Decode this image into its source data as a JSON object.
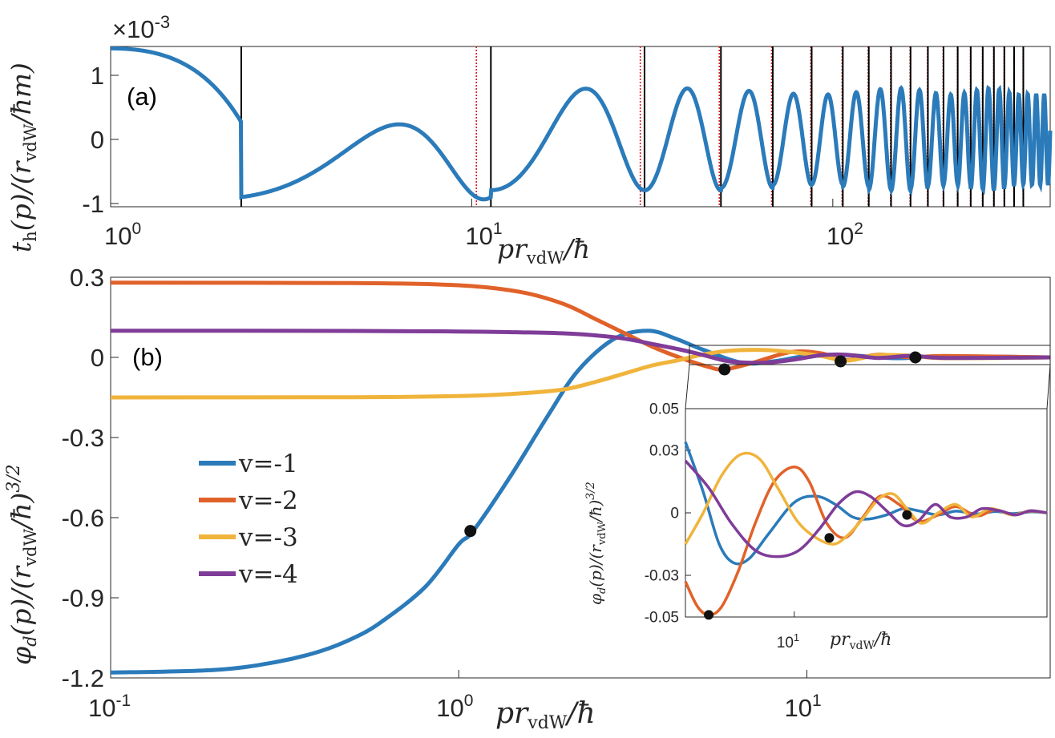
{
  "chart_data": [
    {
      "id": "panel_a",
      "type": "line",
      "panel_label": "(a)",
      "xlabel": "pr_vdW/ħ",
      "ylabel": "t_h(p)/(r_vdW/ħm)",
      "xscale": "log",
      "xlim": [
        1,
        400
      ],
      "ylim": [
        -1.05,
        1.45
      ],
      "y_multiplier": "×10^-3",
      "xticks": [
        {
          "value": 1,
          "label": "10",
          "exp": "0"
        },
        {
          "value": 10,
          "label": "10",
          "exp": "1"
        },
        {
          "value": 100,
          "label": "10",
          "exp": "2"
        }
      ],
      "yticks": [
        {
          "value": -1,
          "label": "-1"
        },
        {
          "value": 0,
          "label": "0"
        },
        {
          "value": 1,
          "label": "1"
        }
      ],
      "color": "#2b7bba",
      "series_formula": "damped oscillation: y = A(p)·cos(φ(p)); A=1.45 at p=1, mid-range amplitude ≈0.6–0.8",
      "black_lines_x": [
        2.3,
        11.3,
        30.1,
        49.0,
        68.2,
        87.4,
        106.6,
        125.8,
        145.0,
        164.2,
        183.4,
        202.6,
        221.8,
        241.0,
        260.2,
        279.4,
        298.6,
        317.8,
        337.0
      ],
      "red_dotted_lines_x": [
        10.3,
        29.3,
        48.5,
        67.7,
        86.9,
        106.1,
        125.3,
        144.5,
        163.7,
        182.9,
        202.1,
        221.3,
        240.5,
        259.7,
        278.9,
        298.1,
        317.3,
        336.5
      ]
    },
    {
      "id": "panel_b",
      "type": "line",
      "panel_label": "(b)",
      "xlabel": "pr_vdW/ħ",
      "ylabel": "φ_d(p)/(r_vdW/ħ)^3/2",
      "xscale": "log",
      "xlim": [
        0.1,
        50
      ],
      "ylim": [
        -1.2,
        0.3
      ],
      "xticks": [
        {
          "value": 0.1,
          "label": "10",
          "exp": "-1"
        },
        {
          "value": 1,
          "label": "10",
          "exp": "0"
        },
        {
          "value": 10,
          "label": "10",
          "exp": "1"
        }
      ],
      "yticks": [
        {
          "value": 0.3,
          "label": "0.3"
        },
        {
          "value": 0,
          "label": "0"
        },
        {
          "value": -0.3,
          "label": "-0.3"
        },
        {
          "value": -0.6,
          "label": "-0.6"
        },
        {
          "value": -0.9,
          "label": "-0.9"
        },
        {
          "value": -1.2,
          "label": "-1.2"
        }
      ],
      "legend_position": "center-left",
      "series": [
        {
          "name": "v=-1",
          "color": "#2b7bba",
          "y0": -1.18,
          "x": [
            0.1,
            0.2,
            0.3,
            0.4,
            0.5,
            0.6,
            0.8,
            1.0,
            1.1,
            1.4,
            1.8,
            2.2,
            2.8,
            3.5,
            4.2,
            5.0,
            6.5,
            8.0,
            10,
            13,
            18,
            25,
            50
          ],
          "values": [
            -1.18,
            -1.17,
            -1.14,
            -1.1,
            -1.05,
            -0.99,
            -0.86,
            -0.7,
            -0.65,
            -0.45,
            -0.22,
            -0.05,
            0.07,
            0.1,
            0.07,
            0.03,
            -0.02,
            -0.015,
            0.005,
            0.008,
            -0.003,
            0.004,
            0
          ]
        },
        {
          "name": "v=-2",
          "color": "#e0622a",
          "x": [
            0.1,
            0.5,
            1.0,
            1.5,
            2.0,
            2.5,
            3.0,
            3.6,
            4.3,
            5.2,
            5.8,
            7.0,
            9.0,
            11,
            13,
            16,
            20,
            25,
            50
          ],
          "values": [
            0.28,
            0.278,
            0.27,
            0.245,
            0.2,
            0.14,
            0.09,
            0.04,
            0.0,
            -0.035,
            -0.045,
            -0.02,
            0.02,
            0.015,
            -0.01,
            0.01,
            0.0,
            0.005,
            0
          ]
        },
        {
          "name": "v=-3",
          "color": "#f0b43c",
          "x": [
            0.1,
            0.5,
            1.0,
            1.5,
            2.0,
            2.5,
            3.0,
            3.6,
            4.3,
            5.0,
            6.0,
            7.5,
            9.0,
            11,
            13,
            16,
            20,
            25,
            50
          ],
          "values": [
            -0.15,
            -0.149,
            -0.145,
            -0.135,
            -0.12,
            -0.09,
            -0.06,
            -0.03,
            -0.01,
            0.01,
            0.025,
            0.028,
            0.02,
            0.005,
            -0.012,
            0.008,
            0.006,
            -0.003,
            0
          ]
        },
        {
          "name": "v=-4",
          "color": "#7f3c98",
          "x": [
            0.1,
            0.5,
            1.0,
            1.5,
            2.0,
            2.5,
            3.0,
            3.6,
            4.3,
            5.0,
            6.0,
            7.5,
            9.0,
            11,
            13,
            16,
            20,
            25,
            50
          ],
          "values": [
            0.1,
            0.099,
            0.097,
            0.094,
            0.09,
            0.082,
            0.07,
            0.05,
            0.03,
            0.01,
            -0.015,
            -0.02,
            -0.01,
            0.008,
            0.01,
            -0.002,
            0.006,
            -0.002,
            0
          ]
        }
      ],
      "markers": [
        {
          "x": 1.08,
          "y": -0.65
        },
        {
          "x": 5.8,
          "y": -0.045
        },
        {
          "x": 12.5,
          "y": -0.015
        },
        {
          "x": 20.5,
          "y": 0.0
        }
      ]
    },
    {
      "id": "panel_b_inset",
      "type": "line",
      "xlabel": "pr_vdW/ħ",
      "ylabel": "φ_d(p)/(r_vdW/ħ)^3/2",
      "xscale": "log",
      "xlim": [
        5,
        50
      ],
      "ylim": [
        -0.05,
        0.05
      ],
      "xticks": [
        {
          "value": 10,
          "label": "10",
          "exp": "1"
        }
      ],
      "yticks": [
        {
          "value": 0.05,
          "label": "0.05"
        },
        {
          "value": 0.03,
          "label": "0.03"
        },
        {
          "value": 0,
          "label": "0"
        },
        {
          "value": -0.03,
          "label": "-0.03"
        },
        {
          "value": -0.05,
          "label": "-0.05"
        }
      ],
      "series": [
        {
          "name": "v=-1",
          "color": "#2b7bba",
          "x": [
            5.0,
            5.6,
            6.2,
            6.8,
            7.5,
            8.5,
            10,
            11.5,
            13,
            14.5,
            16,
            18,
            20,
            22,
            25,
            28,
            32,
            36,
            40,
            45,
            50
          ],
          "values": [
            0.034,
            0.01,
            -0.015,
            -0.024,
            -0.022,
            -0.01,
            0.005,
            0.008,
            0.004,
            -0.002,
            -0.003,
            -0.001,
            0.002,
            0.001,
            -0.001,
            0.0008,
            -0.0005,
            0.0007,
            -0.0004,
            0.0005,
            0
          ]
        },
        {
          "name": "v=-2",
          "color": "#e0622a",
          "x": [
            5.0,
            5.4,
            5.8,
            6.3,
            7.0,
            7.8,
            8.8,
            10.0,
            11.0,
            12.3,
            13.8,
            15.5,
            17.3,
            19.5,
            22,
            25,
            28,
            32,
            36,
            40,
            45,
            50
          ],
          "values": [
            -0.033,
            -0.045,
            -0.049,
            -0.045,
            -0.028,
            -0.005,
            0.015,
            0.022,
            0.015,
            -0.005,
            -0.012,
            -0.002,
            0.008,
            0.004,
            -0.004,
            -0.001,
            0.003,
            -0.0015,
            0.0015,
            -0.001,
            0.0008,
            0
          ]
        },
        {
          "name": "v=-3",
          "color": "#f0b43c",
          "x": [
            5.0,
            5.6,
            6.3,
            7.1,
            8.0,
            9.0,
            10.2,
            11.5,
            12.9,
            14.2,
            15.6,
            17.2,
            18.8,
            20.5,
            22.5,
            25,
            28,
            31,
            35,
            40,
            45,
            50
          ],
          "values": [
            -0.015,
            0.0,
            0.018,
            0.028,
            0.026,
            0.012,
            -0.004,
            -0.012,
            -0.015,
            -0.01,
            -0.002,
            0.007,
            0.009,
            0.002,
            -0.005,
            0.0,
            0.004,
            -0.002,
            0.002,
            -0.001,
            0.001,
            0
          ]
        },
        {
          "name": "v=-4",
          "color": "#7f3c98",
          "x": [
            5.0,
            5.8,
            6.7,
            7.8,
            9.0,
            10.3,
            11.7,
            13.2,
            14.7,
            16.2,
            18,
            20,
            22,
            24.5,
            27,
            30,
            33,
            37,
            41,
            45,
            50
          ],
          "values": [
            0.025,
            0.012,
            -0.005,
            -0.018,
            -0.021,
            -0.018,
            -0.008,
            0.004,
            0.01,
            0.008,
            0.001,
            -0.006,
            -0.004,
            0.004,
            -0.002,
            -0.002,
            0.002,
            0.001,
            -0.001,
            0.001,
            0
          ]
        }
      ],
      "markers": [
        {
          "x": 5.8,
          "y": -0.049
        },
        {
          "x": 12.5,
          "y": -0.012
        },
        {
          "x": 20.5,
          "y": -0.001
        }
      ]
    }
  ]
}
